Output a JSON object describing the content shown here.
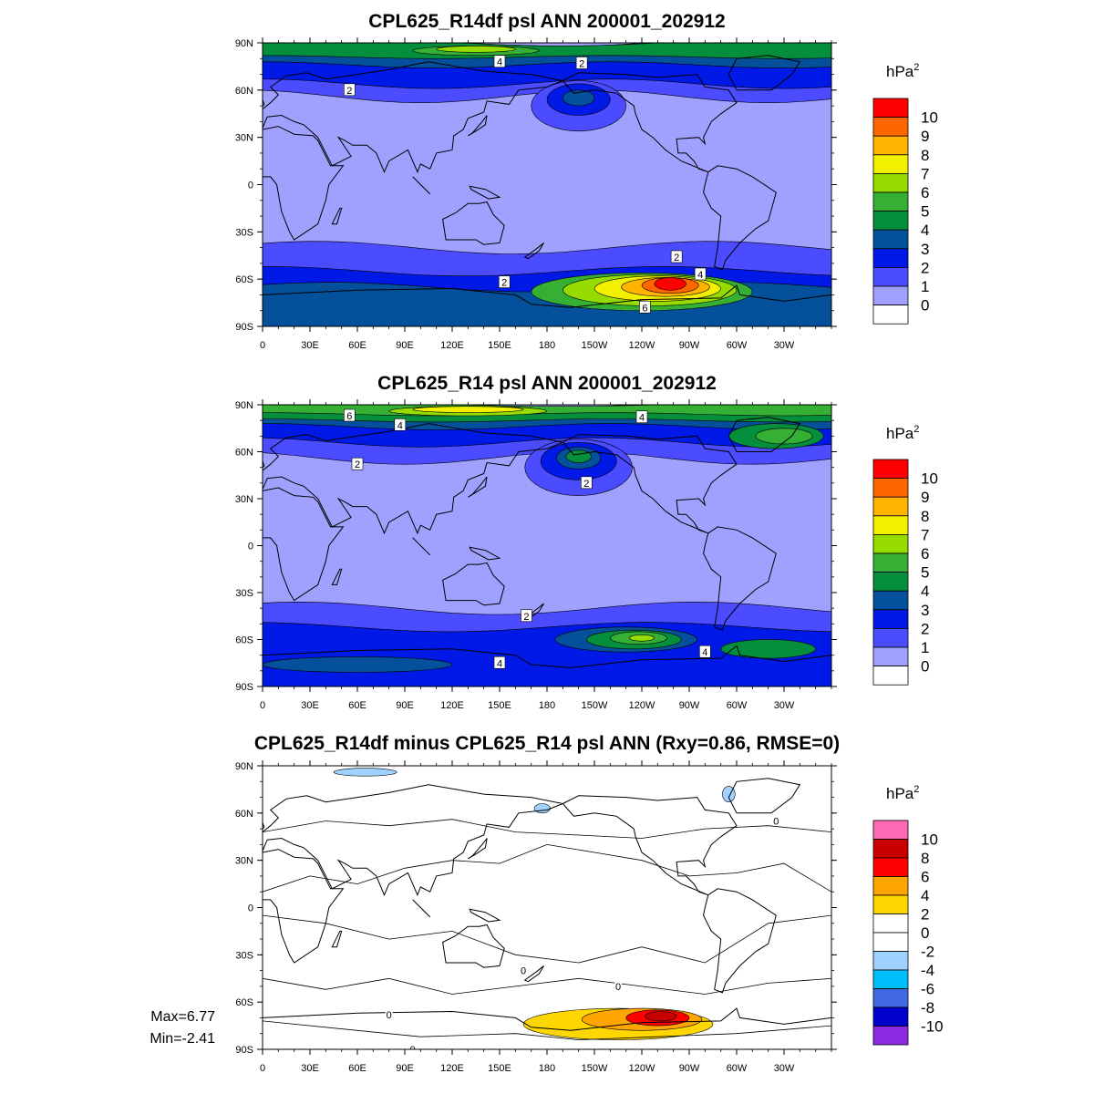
{
  "panels": [
    {
      "title": "CPL625_R14df psl ANN 200001_202912",
      "unit": "hPa",
      "unit_exp": "2",
      "colorbar": {
        "labels": [
          "10",
          "9",
          "8",
          "7",
          "6",
          "5",
          "4",
          "3",
          "2",
          "1",
          "0"
        ],
        "colors": [
          "#ff0000",
          "#ff6600",
          "#ffb400",
          "#f0f000",
          "#96dc00",
          "#35b035",
          "#058e3c",
          "#05509a",
          "#0019e6",
          "#4b4bff",
          "#a0a0ff",
          "#ffffff"
        ]
      },
      "contour_labels": [
        "4",
        "2",
        "2",
        "2",
        "2",
        "4",
        "6"
      ]
    },
    {
      "title": "CPL625_R14 psl ANN 200001_202912",
      "unit": "hPa",
      "unit_exp": "2",
      "colorbar": {
        "labels": [
          "10",
          "9",
          "8",
          "7",
          "6",
          "5",
          "4",
          "3",
          "2",
          "1",
          "0"
        ],
        "colors": [
          "#ff0000",
          "#ff6600",
          "#ffb400",
          "#f0f000",
          "#96dc00",
          "#35b035",
          "#058e3c",
          "#05509a",
          "#0019e6",
          "#4b4bff",
          "#a0a0ff",
          "#ffffff"
        ]
      },
      "contour_labels": [
        "6",
        "4",
        "4",
        "2",
        "2",
        "2",
        "4",
        "4"
      ]
    },
    {
      "title": "CPL625_R14df minus CPL625_R14 psl ANN (Rxy=0.86, RMSE=0)",
      "unit": "hPa",
      "unit_exp": "2",
      "colorbar": {
        "labels": [
          "10",
          "8",
          "6",
          "4",
          "2",
          "0",
          "-2",
          "-4",
          "-6",
          "-8",
          "-10"
        ],
        "colors": [
          "#ff69b4",
          "#c80000",
          "#ff0000",
          "#ffa500",
          "#ffd700",
          "#ffffff",
          "#ffffff",
          "#a0d2ff",
          "#00bfff",
          "#4169e1",
          "#0000cd",
          "#8a2be2"
        ]
      },
      "contour_labels": [
        "0",
        "0",
        "0",
        "0",
        "0"
      ],
      "max_label": "Max=6.77",
      "min_label": "Min=-2.41"
    }
  ],
  "lat_ticks": [
    "90N",
    "60N",
    "30N",
    "0",
    "30S",
    "60S",
    "90S"
  ],
  "lon_ticks": [
    "0",
    "30E",
    "60E",
    "90E",
    "120E",
    "150E",
    "180",
    "150W",
    "120W",
    "90W",
    "60W",
    "30W"
  ]
}
